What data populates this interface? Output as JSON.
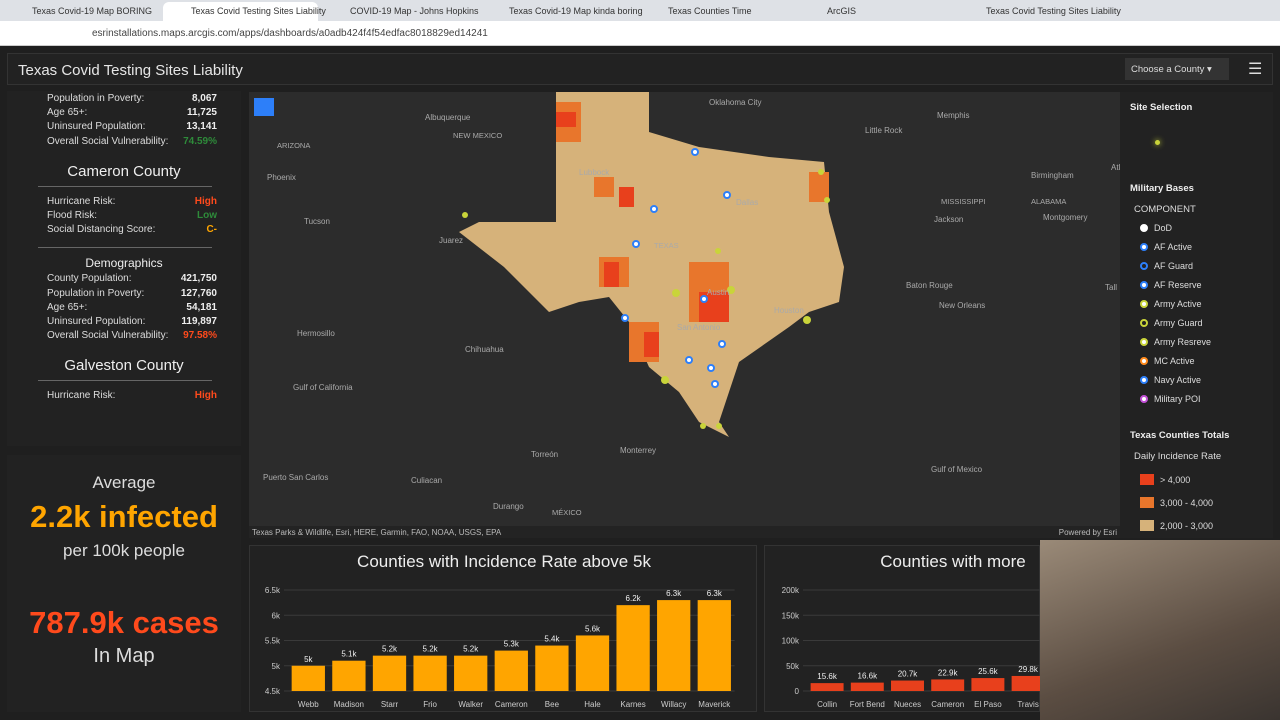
{
  "browser": {
    "tabs": [
      "Texas Covid-19 Map BORING",
      "Texas Covid Testing Sites Liability",
      "COVID-19 Map - Johns Hopkins",
      "Texas Covid-19 Map kinda boring",
      "Texas Counties Time",
      "ArcGIS",
      "Texas Covid Testing Sites Liability"
    ],
    "url": "esrinstallations.maps.arcgis.com/apps/dashboards/a0adb424f4f54edfac8018829ed14241"
  },
  "header": {
    "title": "Texas Covid Testing Sites Liability",
    "dropdown": "Choose a County"
  },
  "left_panel": {
    "items": [
      {
        "fields": [
          {
            "label": "Population in Poverty:",
            "value": "8,067"
          },
          {
            "label": "Age 65+:",
            "value": "11,725"
          },
          {
            "label": "Uninsured Population:",
            "value": "13,141"
          },
          {
            "label": "Overall Social Vulnerability:",
            "value": "74.59%",
            "color": "#2e8b3a"
          }
        ]
      },
      {
        "title": "Cameron County",
        "risks": [
          {
            "label": "Hurricane Risk:",
            "value": "High",
            "color": "#ff4a1c"
          },
          {
            "label": "Flood Risk:",
            "value": "Low",
            "color": "#2e8b3a"
          },
          {
            "label": "Social Distancing Score:",
            "value": "C-",
            "color": "#ffa500"
          }
        ],
        "section": "Demographics",
        "fields": [
          {
            "label": "County Population:",
            "value": "421,750"
          },
          {
            "label": "Population in Poverty:",
            "value": "127,760"
          },
          {
            "label": "Age 65+:",
            "value": "54,181"
          },
          {
            "label": "Uninsured Population:",
            "value": "119,897"
          },
          {
            "label": "Overall Social Vulnerability:",
            "value": "97.58%",
            "color": "#ff4a1c"
          }
        ]
      },
      {
        "title": "Galveston County",
        "risks": [
          {
            "label": "Hurricane Risk:",
            "value": "High",
            "color": "#ff4a1c"
          }
        ]
      }
    ]
  },
  "indicator": {
    "top": "Average",
    "value": "2.2k infected",
    "unit": "per 100k people",
    "value2": "787.9k cases",
    "unit2": "In Map"
  },
  "map": {
    "labels": [
      "Oklahoma City",
      "Memphis",
      "Albuquerque",
      "ARIZONA",
      "NEW MEXICO",
      "Little Rock",
      "Phoenix",
      "Lubbock",
      "Birmingham",
      "Tucson",
      "Dallas",
      "MISSISSIPPI",
      "ALABAMA",
      "Juarez",
      "TEXAS",
      "Jackson",
      "Montgomery",
      "Baton Rouge",
      "Austin",
      "New Orleans",
      "Houston",
      "Hermosillo",
      "Chihuahua",
      "San Antonio",
      "Gulf of California",
      "Torreón",
      "Monterrey",
      "Culiacan",
      "Durango",
      "MÉXICO",
      "Gulf of Mexico",
      "Puerto San Carlos",
      "Tall",
      "Atl"
    ],
    "attribution": "Texas Parks & Wildlife, Esri, HERE, Garmin, FAO, NOAA, USGS, EPA",
    "powered": "Powered by Esri"
  },
  "legend": {
    "site_title": "Site Selection",
    "bases_title": "Military Bases",
    "component": "COMPONENT",
    "bases": [
      "DoD",
      "AF Active",
      "AF Guard",
      "AF Reserve",
      "Army Active",
      "Army Guard",
      "Army Resreve",
      "MC Active",
      "Navy Active",
      "Military POI"
    ],
    "totals_title": "Texas Counties Totals",
    "rate_title": "Daily Incidence Rate",
    "rates": [
      "> 4,000",
      "3,000 - 4,000",
      "2,000 - 3,000"
    ]
  },
  "chart_data": [
    {
      "type": "bar",
      "title": "Counties with Incidence Rate above 5k",
      "categories": [
        "Webb",
        "Madison",
        "Starr",
        "Frio",
        "Walker",
        "Cameron",
        "Bee",
        "Hale",
        "Karnes",
        "Willacy",
        "Maverick"
      ],
      "values": [
        5000,
        5100,
        5200,
        5200,
        5200,
        5300,
        5400,
        5600,
        6200,
        6300,
        6300
      ],
      "value_labels": [
        "5k",
        "5.1k",
        "5.2k",
        "5.2k",
        "5.2k",
        "5.3k",
        "5.4k",
        "5.6k",
        "6.2k",
        "6.3k",
        "6.3k"
      ],
      "color": "#ffa500",
      "ylim": [
        4500,
        6500
      ],
      "yticks": [
        {
          "value": 4500,
          "label": "4.5k"
        },
        {
          "value": 5000,
          "label": "5k"
        },
        {
          "value": 5500,
          "label": "5.5k"
        },
        {
          "value": 6000,
          "label": "6k"
        },
        {
          "value": 6500,
          "label": "6.5k"
        }
      ]
    },
    {
      "type": "bar",
      "title": "Counties with more",
      "categories": [
        "Collin",
        "Fort Bend",
        "Nueces",
        "Cameron",
        "El Paso",
        "Travis"
      ],
      "values": [
        15600,
        16600,
        20700,
        22900,
        25600,
        29800
      ],
      "value_labels": [
        "15.6k",
        "16.6k",
        "20.7k",
        "22.9k",
        "25.6k",
        "29.8k"
      ],
      "color": "#e8401c",
      "ylim": [
        0,
        200000
      ],
      "yticks": [
        0,
        {
          "value": 50000,
          "label": "50k"
        },
        {
          "value": 100000,
          "label": "100k"
        },
        {
          "value": 150000,
          "label": "150k"
        },
        {
          "value": 200000,
          "label": "200k"
        }
      ]
    }
  ]
}
